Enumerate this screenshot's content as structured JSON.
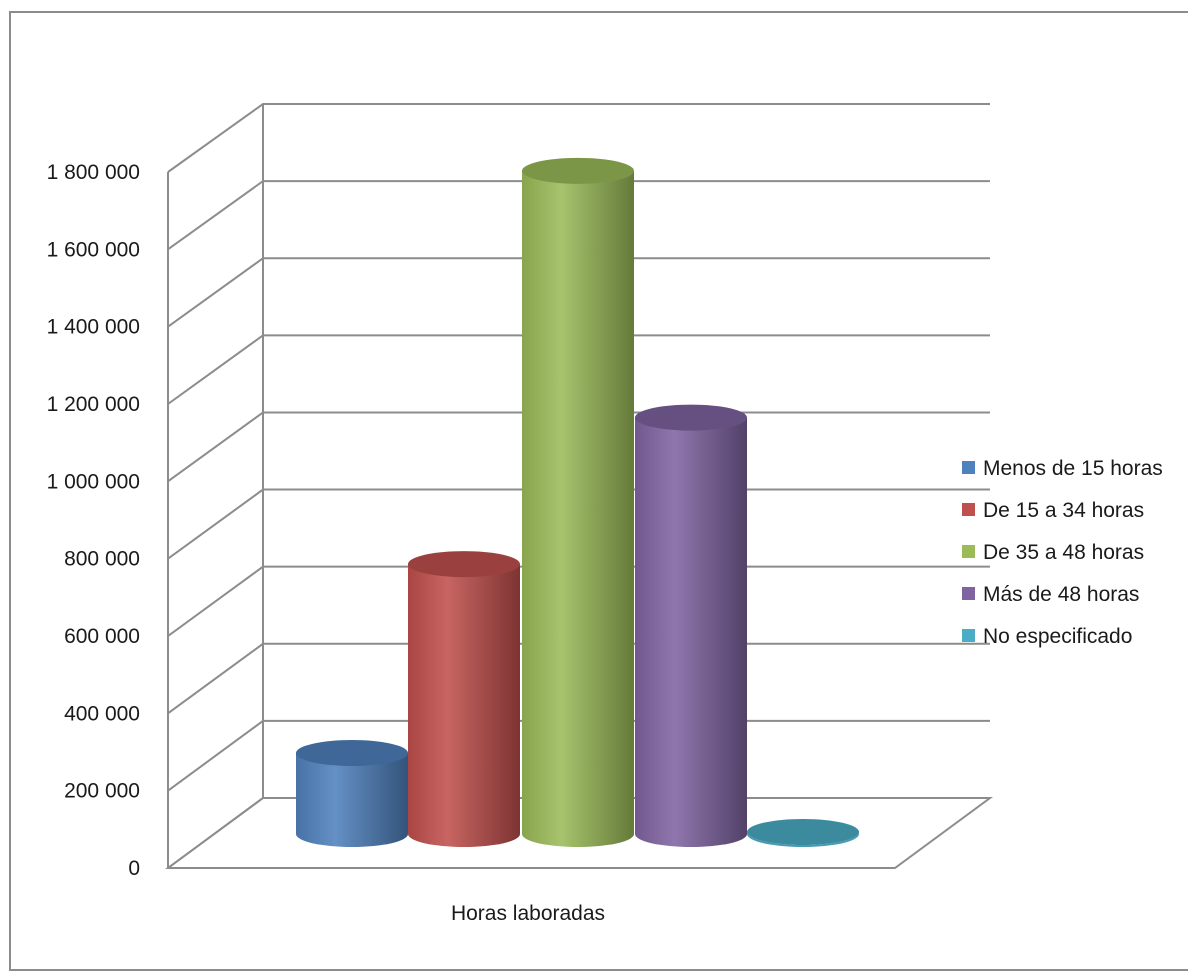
{
  "chart_data": {
    "type": "bar",
    "style": "3d-cylinder",
    "title": "",
    "xlabel": "",
    "ylabel": "",
    "categories": [
      "Horas laboradas"
    ],
    "series": [
      {
        "name": "Menos de 15 horas",
        "values": [
          210000
        ],
        "color": "#4f81bd"
      },
      {
        "name": "De 15 a 34 horas",
        "values": [
          700000
        ],
        "color": "#c0504d"
      },
      {
        "name": "De 35 a 48 horas",
        "values": [
          1720000
        ],
        "color": "#9bbb59"
      },
      {
        "name": "Más de 48 horas",
        "values": [
          1080000
        ],
        "color": "#8064a2"
      },
      {
        "name": "No especificado",
        "values": [
          5000
        ],
        "color": "#4bacc6"
      }
    ],
    "ylim": [
      0,
      1800000
    ],
    "yticks": [
      0,
      200000,
      400000,
      600000,
      800000,
      1000000,
      1200000,
      1400000,
      1600000,
      1800000
    ],
    "ytick_labels": [
      "0",
      "200 000",
      "400 000",
      "600 000",
      "800 000",
      "1 000 000",
      "1 200 000",
      "1 400 000",
      "1 600 000",
      "1 800 000"
    ],
    "grid": true,
    "legend_position": "right"
  }
}
